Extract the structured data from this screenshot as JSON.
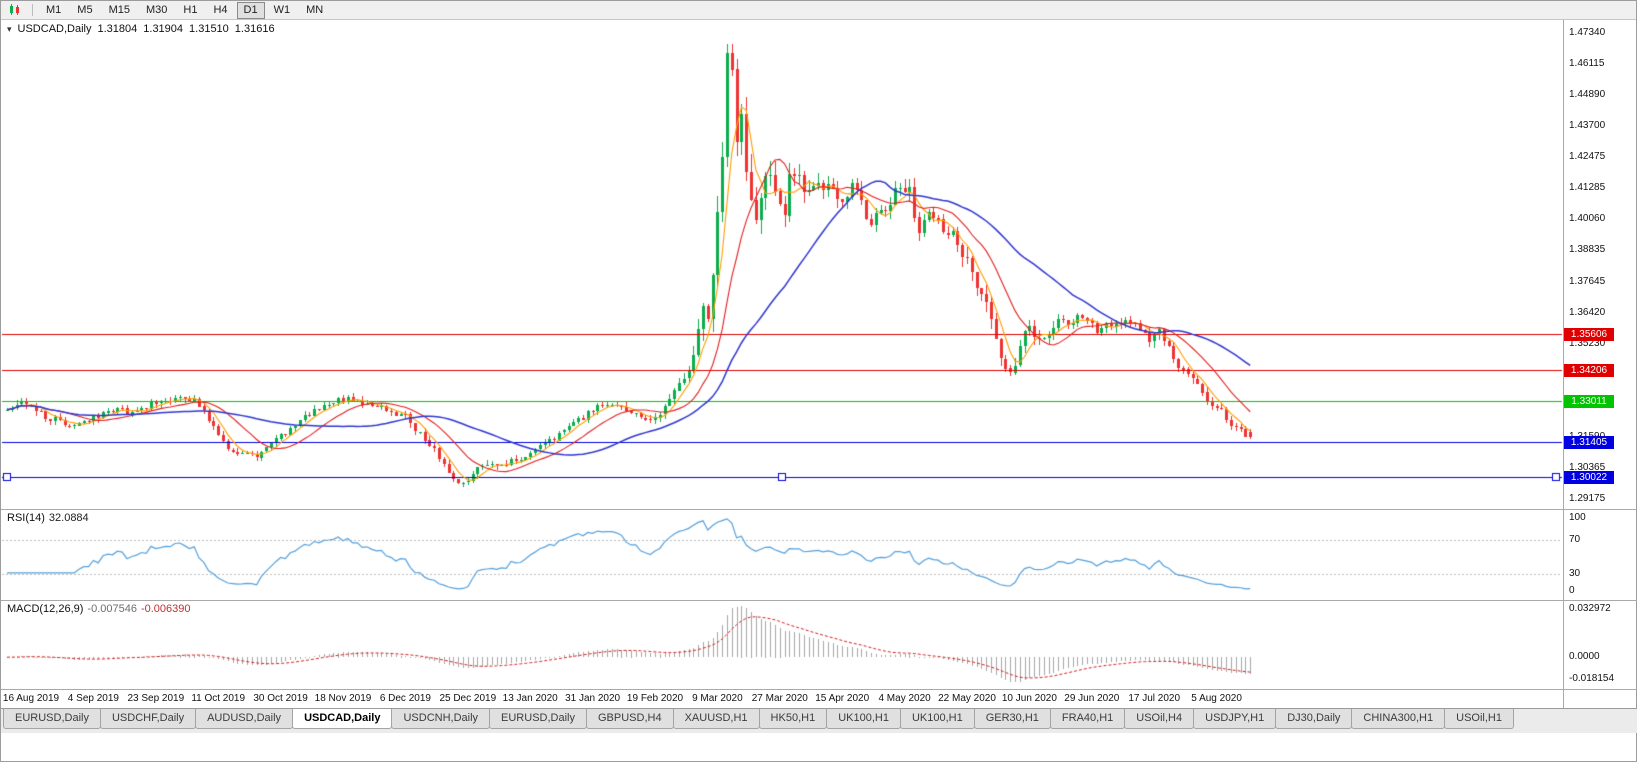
{
  "toolbar": {
    "timeframes": [
      {
        "label": "M1",
        "active": false
      },
      {
        "label": "M5",
        "active": false
      },
      {
        "label": "M15",
        "active": false
      },
      {
        "label": "M30",
        "active": false
      },
      {
        "label": "H1",
        "active": false
      },
      {
        "label": "H4",
        "active": false
      },
      {
        "label": "D1",
        "active": true
      },
      {
        "label": "W1",
        "active": false
      },
      {
        "label": "MN",
        "active": false
      }
    ]
  },
  "chart_header": {
    "marker": "▾",
    "symbol": "USDCAD,Daily",
    "open": "1.31804",
    "high": "1.31904",
    "low": "1.31510",
    "close": "1.31616"
  },
  "colors": {
    "bull": "#0cad4c",
    "bear": "#ee3333",
    "panel_border": "#a9a9a9"
  },
  "chart_data": {
    "type": "candlestick",
    "symbol": "USDCAD",
    "period": "Daily",
    "title": "USDCAD,Daily",
    "price_max": 1.4734,
    "price_min": 1.29175,
    "y_tick_labels": [
      "1.47340",
      "1.46115",
      "1.44890",
      "1.43700",
      "1.42475",
      "1.41285",
      "1.40060",
      "1.38835",
      "1.37645",
      "1.36420",
      "1.35230",
      "1.34005",
      "1.32780",
      "1.31590",
      "1.30365",
      "1.29175"
    ],
    "x_tick_labels": [
      "16 Aug 2019",
      "4 Sep 2019",
      "23 Sep 2019",
      "11 Oct 2019",
      "30 Oct 2019",
      "18 Nov 2019",
      "6 Dec 2019",
      "25 Dec 2019",
      "13 Jan 2020",
      "31 Jan 2020",
      "19 Feb 2020",
      "9 Mar 2020",
      "27 Mar 2020",
      "15 Apr 2020",
      "4 May 2020",
      "22 May 2020",
      "10 Jun 2020",
      "29 Jun 2020",
      "17 Jul 2020",
      "5 Aug 2020"
    ],
    "candle_count": 260,
    "last_candle": {
      "open": 1.31804,
      "high": 1.31904,
      "low": 1.3151,
      "close": 1.31616
    },
    "close_anchors": [
      [
        0,
        1.326
      ],
      [
        4,
        1.3295
      ],
      [
        8,
        1.324
      ],
      [
        13,
        1.3205
      ],
      [
        18,
        1.3235
      ],
      [
        23,
        1.3275
      ],
      [
        26,
        1.325
      ],
      [
        30,
        1.3285
      ],
      [
        34,
        1.331
      ],
      [
        39,
        1.33
      ],
      [
        42,
        1.323
      ],
      [
        45,
        1.314
      ],
      [
        48,
        1.3085
      ],
      [
        52,
        1.309
      ],
      [
        55,
        1.3145
      ],
      [
        58,
        1.3175
      ],
      [
        61,
        1.323
      ],
      [
        65,
        1.327
      ],
      [
        68,
        1.33
      ],
      [
        72,
        1.331
      ],
      [
        75,
        1.3285
      ],
      [
        80,
        1.326
      ],
      [
        83,
        1.3235
      ],
      [
        86,
        1.317
      ],
      [
        89,
        1.3115
      ],
      [
        91,
        1.305
      ],
      [
        93,
        1.2985
      ],
      [
        96,
        1.2995
      ],
      [
        99,
        1.305
      ],
      [
        106,
        1.3065
      ],
      [
        110,
        1.3105
      ],
      [
        114,
        1.3155
      ],
      [
        119,
        1.3225
      ],
      [
        123,
        1.328
      ],
      [
        127,
        1.329
      ],
      [
        130,
        1.3255
      ],
      [
        132,
        1.323
      ],
      [
        135,
        1.3225
      ],
      [
        138,
        1.3295
      ],
      [
        141,
        1.3385
      ],
      [
        143,
        1.348
      ],
      [
        144,
        1.36
      ],
      [
        145,
        1.37
      ],
      [
        146,
        1.364
      ],
      [
        147,
        1.38
      ],
      [
        148,
        1.4
      ],
      [
        149,
        1.43
      ],
      [
        150,
        1.46
      ],
      [
        151,
        1.464
      ],
      [
        152,
        1.433
      ],
      [
        153,
        1.444
      ],
      [
        154,
        1.422
      ],
      [
        155,
        1.406
      ],
      [
        156,
        1.401
      ],
      [
        157,
        1.412
      ],
      [
        158,
        1.418
      ],
      [
        159,
        1.419
      ],
      [
        160,
        1.412
      ],
      [
        161,
        1.406
      ],
      [
        162,
        1.399
      ],
      [
        163,
        1.415
      ],
      [
        164,
        1.419
      ],
      [
        166,
        1.41
      ],
      [
        168,
        1.417
      ],
      [
        170,
        1.411
      ],
      [
        172,
        1.414
      ],
      [
        174,
        1.409
      ],
      [
        176,
        1.413
      ],
      [
        178,
        1.406
      ],
      [
        180,
        1.399
      ],
      [
        182,
        1.404
      ],
      [
        184,
        1.409
      ],
      [
        186,
        1.414
      ],
      [
        188,
        1.411
      ],
      [
        190,
        1.397
      ],
      [
        192,
        1.404
      ],
      [
        194,
        1.399
      ],
      [
        197,
        1.396
      ],
      [
        199,
        1.388
      ],
      [
        201,
        1.379
      ],
      [
        203,
        1.372
      ],
      [
        205,
        1.362
      ],
      [
        207,
        1.349
      ],
      [
        209,
        1.34
      ],
      [
        210,
        1.344
      ],
      [
        211,
        1.349
      ],
      [
        212,
        1.356
      ],
      [
        213,
        1.359
      ],
      [
        215,
        1.354
      ],
      [
        217,
        1.357
      ],
      [
        219,
        1.361
      ],
      [
        221,
        1.359
      ],
      [
        223,
        1.364
      ],
      [
        225,
        1.361
      ],
      [
        227,
        1.358
      ],
      [
        229,
        1.361
      ],
      [
        231,
        1.359
      ],
      [
        233,
        1.362
      ],
      [
        235,
        1.36
      ],
      [
        236,
        1.357
      ],
      [
        238,
        1.354
      ],
      [
        240,
        1.358
      ],
      [
        242,
        1.352
      ],
      [
        244,
        1.342
      ],
      [
        246,
        1.34
      ],
      [
        248,
        1.337
      ],
      [
        249,
        1.332
      ],
      [
        251,
        1.329
      ],
      [
        253,
        1.327
      ],
      [
        254,
        1.323
      ],
      [
        256,
        1.32
      ],
      [
        257,
        1.318
      ],
      [
        259,
        1.3162
      ]
    ],
    "volatility_anchors": [
      [
        0,
        0.0035
      ],
      [
        40,
        0.0035
      ],
      [
        60,
        0.003
      ],
      [
        92,
        0.0038
      ],
      [
        120,
        0.003
      ],
      [
        138,
        0.0042
      ],
      [
        144,
        0.0085
      ],
      [
        148,
        0.013
      ],
      [
        151,
        0.019
      ],
      [
        154,
        0.017
      ],
      [
        158,
        0.012
      ],
      [
        165,
        0.01
      ],
      [
        180,
        0.008
      ],
      [
        195,
        0.008
      ],
      [
        205,
        0.0085
      ],
      [
        212,
        0.0065
      ],
      [
        222,
        0.0048
      ],
      [
        240,
        0.0045
      ],
      [
        250,
        0.0042
      ],
      [
        259,
        0.0036
      ]
    ],
    "moving_averages": [
      {
        "name": "MA-fast",
        "period": 5,
        "color": "#ff9c00"
      },
      {
        "name": "MA-mid",
        "period": 13,
        "color": "#e02020"
      },
      {
        "name": "MA-slow",
        "period": 34,
        "color": "#2f36cf"
      }
    ],
    "horizontal_lines": [
      {
        "price": 1.35606,
        "label": "1.35606",
        "color": "#e00000",
        "selected": false
      },
      {
        "price": 1.34206,
        "label": "1.34206",
        "color": "#e00000",
        "selected": false
      },
      {
        "price": 1.33011,
        "label": "1.33011",
        "color": "#00c400",
        "selected": false
      },
      {
        "price": 1.31405,
        "label": "1.31405",
        "color": "#0000e0",
        "selected": false
      },
      {
        "price": 1.30022,
        "label": "1.30022",
        "color": "#0000e0",
        "selected": true
      }
    ],
    "indicators": {
      "rsi": {
        "label": "RSI(14)",
        "period": 14,
        "value": "32.0884",
        "axis_labels": [
          "100",
          "70",
          "30",
          "0"
        ],
        "levels": [
          70,
          30
        ],
        "color": "#55a0dc"
      },
      "macd": {
        "label": "MACD(12,26,9)",
        "params": [
          12,
          26,
          9
        ],
        "main_value": "-0.007546",
        "signal_value": "-0.006390",
        "axis_labels": [
          "0.032972",
          "0.0000",
          "-0.018154"
        ],
        "axis_max": 0.032972,
        "axis_min": -0.018154,
        "hist_color": "#a6a6a6",
        "signal_color": "#d02020"
      }
    }
  },
  "tabs": [
    {
      "label": "EURUSD,Daily",
      "active": false
    },
    {
      "label": "USDCHF,Daily",
      "active": false
    },
    {
      "label": "AUDUSD,Daily",
      "active": false
    },
    {
      "label": "USDCAD,Daily",
      "active": true
    },
    {
      "label": "USDCNH,Daily",
      "active": false
    },
    {
      "label": "EURUSD,Daily",
      "active": false
    },
    {
      "label": "GBPUSD,H4",
      "active": false
    },
    {
      "label": "XAUUSD,H1",
      "active": false
    },
    {
      "label": "HK50,H1",
      "active": false
    },
    {
      "label": "UK100,H1",
      "active": false
    },
    {
      "label": "UK100,H1",
      "active": false
    },
    {
      "label": "GER30,H1",
      "active": false
    },
    {
      "label": "FRA40,H1",
      "active": false
    },
    {
      "label": "USOil,H4",
      "active": false
    },
    {
      "label": "USDJPY,H1",
      "active": false
    },
    {
      "label": "DJ30,Daily",
      "active": false
    },
    {
      "label": "CHINA300,H1",
      "active": false
    },
    {
      "label": "USOil,H1",
      "active": false
    }
  ]
}
